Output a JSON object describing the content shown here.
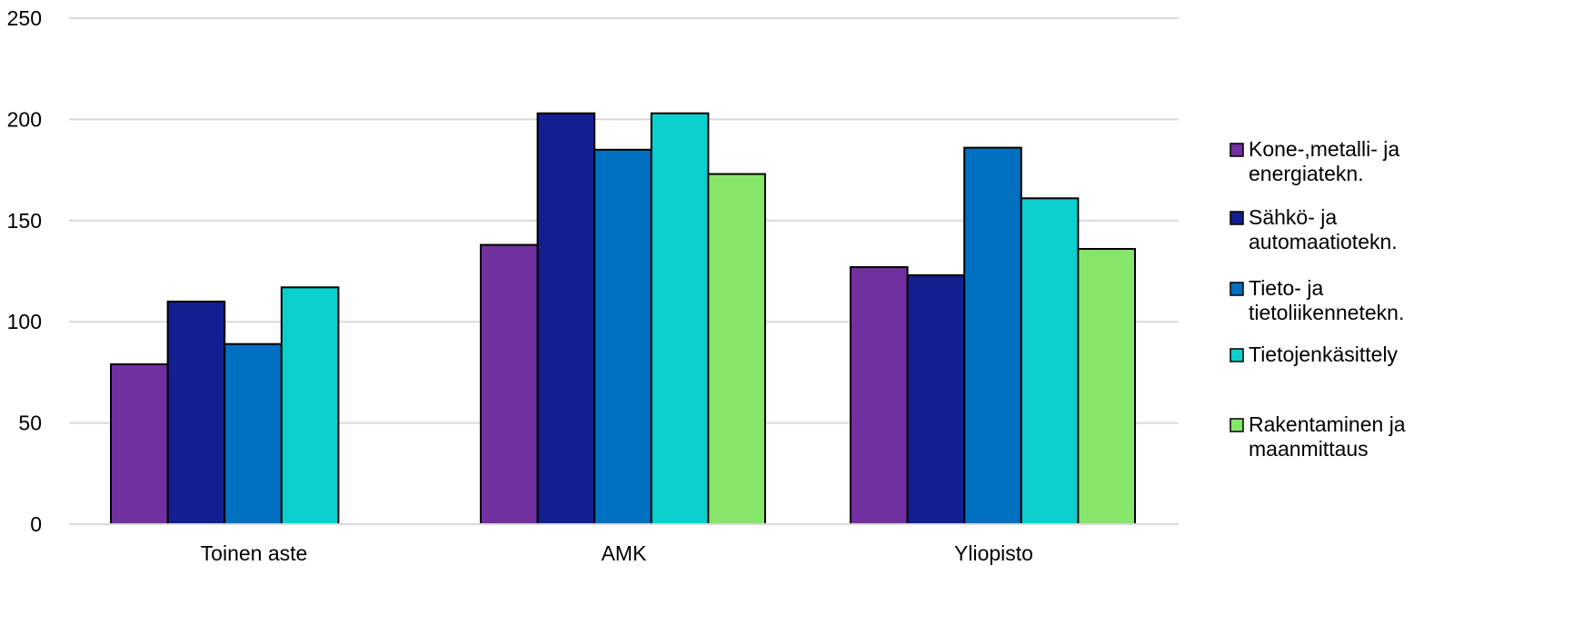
{
  "chart_data": {
    "type": "bar",
    "title": "",
    "xlabel": "",
    "ylabel": "",
    "ylim": [
      0,
      250
    ],
    "yticks": [
      0,
      50,
      100,
      150,
      200,
      250
    ],
    "grid": true,
    "legend_position": "right",
    "categories": [
      "Toinen aste",
      "AMK",
      "Yliopisto"
    ],
    "series": [
      {
        "name": "Kone-,metalli- ja energiatekn.",
        "color": "#7030a0",
        "values": [
          79,
          138,
          127
        ]
      },
      {
        "name": "Sähkö- ja automaatiotekn.",
        "color": "#131f91",
        "values": [
          110,
          203,
          123
        ]
      },
      {
        "name": "Tieto- ja tietoliikennetekn.",
        "color": "#0070c0",
        "values": [
          89,
          185,
          186
        ]
      },
      {
        "name": "Tietojenkäsittely",
        "color": "#0bcfcd",
        "values": [
          117,
          203,
          161
        ]
      },
      {
        "name": "Rakentaminen ja maanmittaus",
        "color": "#85e66a",
        "values": [
          null,
          173,
          136
        ]
      }
    ]
  }
}
